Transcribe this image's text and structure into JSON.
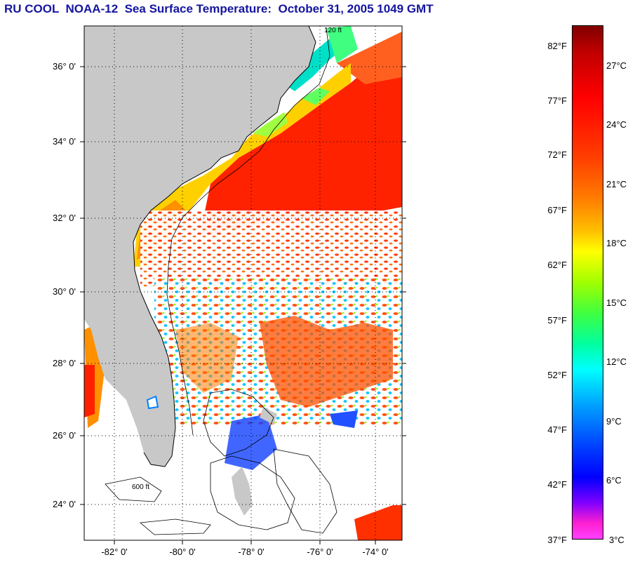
{
  "title": "RU COOL  NOAA-12  Sea Surface Temperature:  October 31, 2005 1049 GMT",
  "latitude_labels": [
    "36° 0'",
    "34° 0'",
    "32° 0'",
    "30° 0'",
    "28° 0'",
    "26° 0'",
    "24° 0'"
  ],
  "longitude_labels": [
    "-82° 0'",
    "-80° 0'",
    "-78° 0'",
    "-76° 0'",
    "-74° 0'"
  ],
  "colorbar": {
    "fahrenheit_labels": [
      "82°F",
      "77°F",
      "72°F",
      "67°F",
      "62°F",
      "57°F",
      "52°F",
      "47°F",
      "42°F",
      "37°F"
    ],
    "celsius_labels": [
      "27°C",
      "24°C",
      "21°C",
      "18°C",
      "15°C",
      "12°C",
      "9°C",
      "6°C",
      "3°C"
    ]
  },
  "contour_labels": [
    "120 ft",
    "600 ft"
  ],
  "colors": {
    "land": "#c8c8c8",
    "title": "#1515a0",
    "warm": "#ff2a00",
    "cool": "#00e0e0"
  }
}
